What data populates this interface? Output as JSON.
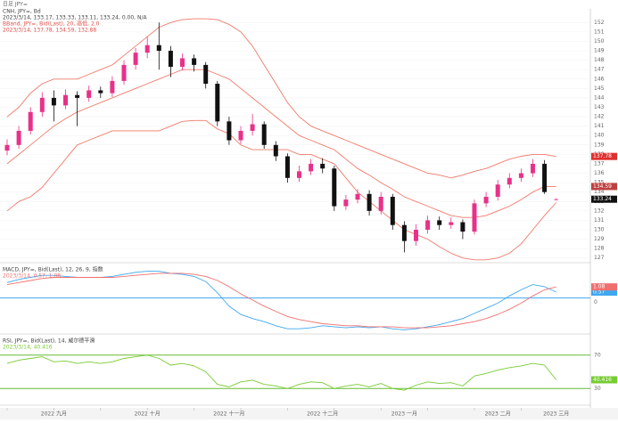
{
  "top_left": "日足 JPY=",
  "chart_data": [
    {
      "type": "candlestick",
      "legend": [
        "CNH, JPY=, Bd",
        "2023/3/14, 133.17, 133.33, 133.11, 133.24, 0.00, N/A",
        "BBand, JPY=, Bid(Last), 20, 高低, 2.0",
        "2023/3/14, 137.78, 134.59, 132.88"
      ],
      "categories": [
        null,
        null,
        null,
        null,
        "2022 九月",
        null,
        null,
        null,
        null,
        null,
        null,
        null,
        "2022 十月",
        null,
        null,
        null,
        null,
        null,
        null,
        "2022 十一月",
        null,
        null,
        null,
        null,
        null,
        null,
        null,
        "2022 十二月",
        null,
        null,
        null,
        null,
        null,
        null,
        "2023 一月",
        null,
        null,
        null,
        null,
        null,
        null,
        null,
        "2023 二月",
        null,
        null,
        null,
        null,
        "2023 三月"
      ],
      "open": [
        138.4,
        139.0,
        140.5,
        142.5,
        144.0,
        143.2,
        144.3,
        144.0,
        144.8,
        144.5,
        145.8,
        147.5,
        148.8,
        149.6,
        149.0,
        147.3,
        148.2,
        147.5,
        145.5,
        141.5,
        139.5,
        140.5,
        141.2,
        139.0,
        137.8,
        135.5,
        136.2,
        137.0,
        136.5,
        132.5,
        133.2,
        133.8,
        132.0,
        133.5,
        130.5,
        128.8,
        130.0,
        131.0,
        130.5,
        130.8,
        129.8,
        132.8,
        133.5,
        134.8,
        135.5,
        136.0,
        137.0,
        133.17
      ],
      "high": [
        139.6,
        141.0,
        143.0,
        144.6,
        144.8,
        144.9,
        144.7,
        145.3,
        145.2,
        146.3,
        148.0,
        149.3,
        150.5,
        152.0,
        149.5,
        148.7,
        148.6,
        147.8,
        145.8,
        142.0,
        141.0,
        142.3,
        141.5,
        139.4,
        138.1,
        136.8,
        137.5,
        137.6,
        136.8,
        133.7,
        134.3,
        134.2,
        134.0,
        133.8,
        130.9,
        130.6,
        131.5,
        131.4,
        131.3,
        131.1,
        133.2,
        134.0,
        135.3,
        136.0,
        136.5,
        137.5,
        137.4,
        133.33
      ],
      "low": [
        137.9,
        138.6,
        140.1,
        142.0,
        141.5,
        142.8,
        141.0,
        143.6,
        144.0,
        144.1,
        145.4,
        147.0,
        148.2,
        147.0,
        146.2,
        146.9,
        146.8,
        145.0,
        141.0,
        139.0,
        139.1,
        140.0,
        138.6,
        137.3,
        135.0,
        135.1,
        135.8,
        136.0,
        132.0,
        132.1,
        132.8,
        131.5,
        131.6,
        130.0,
        127.6,
        128.3,
        129.6,
        130.0,
        130.1,
        129.0,
        129.5,
        132.4,
        133.1,
        134.4,
        135.1,
        135.6,
        133.8,
        133.11
      ],
      "close": [
        139.0,
        140.5,
        142.5,
        144.0,
        143.2,
        144.3,
        144.0,
        144.8,
        144.5,
        145.8,
        147.5,
        148.8,
        149.6,
        149.0,
        147.3,
        148.2,
        147.5,
        145.5,
        141.5,
        139.5,
        140.5,
        141.2,
        139.0,
        137.8,
        135.5,
        136.2,
        137.0,
        136.5,
        132.5,
        133.2,
        133.8,
        132.0,
        133.5,
        130.5,
        128.8,
        130.0,
        131.0,
        130.5,
        130.8,
        129.8,
        132.8,
        133.5,
        134.8,
        135.5,
        136.0,
        137.0,
        134.0,
        133.24
      ],
      "up_color": "#e8318a",
      "down_color": "#111111",
      "series": [
        {
          "name": "Upper",
          "color": "#f07a6a",
          "values": [
            142,
            143,
            144.5,
            145.5,
            146,
            146,
            146,
            146.5,
            147,
            147.5,
            148.5,
            149.5,
            150.5,
            151.5,
            152,
            152.3,
            152.4,
            152.4,
            152.3,
            151.8,
            151,
            149.5,
            147.5,
            145.5,
            143.5,
            142,
            141,
            140.5,
            140,
            139.5,
            139,
            138.5,
            138,
            137.5,
            137,
            136.5,
            136,
            135.8,
            135.5,
            135.8,
            136.2,
            136.5,
            137,
            137.5,
            137.8,
            138,
            138,
            137.78
          ]
        },
        {
          "name": "Middle",
          "color": "#f07a6a",
          "values": [
            137,
            138,
            139,
            140,
            141,
            141.8,
            142.5,
            143,
            143.5,
            144,
            144.5,
            145,
            145.5,
            146,
            146.5,
            147,
            147,
            147,
            146.5,
            146,
            145,
            144,
            143,
            142,
            141,
            140,
            139.5,
            139,
            138.5,
            137.5,
            136.5,
            135.8,
            135,
            134.3,
            133.5,
            133,
            132.5,
            132,
            131.5,
            131.3,
            131.3,
            131.5,
            132,
            132.5,
            133.2,
            134,
            134.6,
            134.59
          ]
        },
        {
          "name": "Lower",
          "color": "#f07a6a",
          "values": [
            132,
            133,
            133.5,
            134.5,
            136,
            137.5,
            139,
            139.5,
            140,
            140.5,
            140.5,
            140.5,
            140.5,
            140.5,
            141,
            141.5,
            141.6,
            141.6,
            140.7,
            140.2,
            139,
            138.5,
            138.5,
            138.5,
            138.5,
            138,
            138,
            137.5,
            137,
            135.5,
            134,
            133,
            132,
            131,
            130,
            129.5,
            129,
            128.2,
            127.5,
            127,
            126.8,
            126.8,
            127,
            127.5,
            128.5,
            130,
            131.5,
            132.88
          ]
        }
      ],
      "ylim": [
        126.5,
        152.5
      ],
      "yticks": [
        127,
        128,
        129,
        130,
        131,
        132,
        133,
        134,
        135,
        136,
        137,
        138,
        139,
        140,
        141,
        142,
        143,
        144,
        145,
        146,
        147,
        148,
        149,
        150,
        151,
        152
      ],
      "grid": true
    },
    {
      "type": "line",
      "legend": [
        "MACD, JPY=, Bid(Last), 12, 26, 9, 指数",
        "2023/3/14, 0.57, 1.08"
      ],
      "series": [
        {
          "name": "MACD",
          "color": "#3fa8f0",
          "values": [
            1.5,
            1.8,
            2.0,
            2.2,
            2.2,
            2.1,
            2.0,
            2.0,
            2.0,
            2.1,
            2.3,
            2.5,
            2.6,
            2.6,
            2.4,
            2.3,
            2.1,
            1.6,
            0.5,
            -0.8,
            -1.6,
            -2.0,
            -2.3,
            -2.7,
            -3.0,
            -3.0,
            -2.9,
            -2.7,
            -2.8,
            -2.9,
            -2.8,
            -2.9,
            -2.8,
            -3.0,
            -3.1,
            -3.0,
            -2.8,
            -2.6,
            -2.3,
            -2.0,
            -1.5,
            -1.0,
            -0.5,
            0.2,
            0.8,
            1.3,
            1.1,
            0.57
          ]
        },
        {
          "name": "Signal",
          "color": "#f07070",
          "values": [
            1.3,
            1.5,
            1.7,
            1.9,
            2.0,
            2.0,
            2.0,
            2.0,
            2.0,
            2.0,
            2.1,
            2.2,
            2.3,
            2.4,
            2.4,
            2.4,
            2.3,
            2.1,
            1.7,
            1.1,
            0.4,
            -0.2,
            -0.8,
            -1.3,
            -1.8,
            -2.1,
            -2.3,
            -2.5,
            -2.6,
            -2.7,
            -2.7,
            -2.8,
            -2.8,
            -2.8,
            -2.9,
            -2.9,
            -2.9,
            -2.8,
            -2.7,
            -2.5,
            -2.3,
            -2.0,
            -1.6,
            -1.1,
            -0.5,
            0.2,
            0.8,
            1.08
          ]
        }
      ],
      "ylim": [
        -3.5,
        3
      ],
      "yticks": [
        0
      ],
      "zero_color": "#3fa8f0"
    },
    {
      "type": "line",
      "legend": [
        "RSI, JPY=, Bid(Last), 14, 威尔德平滑",
        "2023/3/14, 40.416"
      ],
      "series": [
        {
          "name": "RSI",
          "color": "#77cc33",
          "values": [
            60,
            64,
            66,
            68,
            62,
            63,
            60,
            62,
            60,
            62,
            66,
            68,
            70,
            66,
            58,
            60,
            57,
            50,
            35,
            32,
            38,
            40,
            35,
            33,
            30,
            35,
            38,
            37,
            30,
            33,
            35,
            32,
            36,
            30,
            28,
            34,
            38,
            36,
            37,
            33,
            45,
            48,
            52,
            55,
            57,
            60,
            58,
            40.416
          ]
        }
      ],
      "ylim": [
        10,
        90
      ],
      "yticks": [
        30,
        70
      ],
      "level_color": "#66bb33"
    }
  ]
}
